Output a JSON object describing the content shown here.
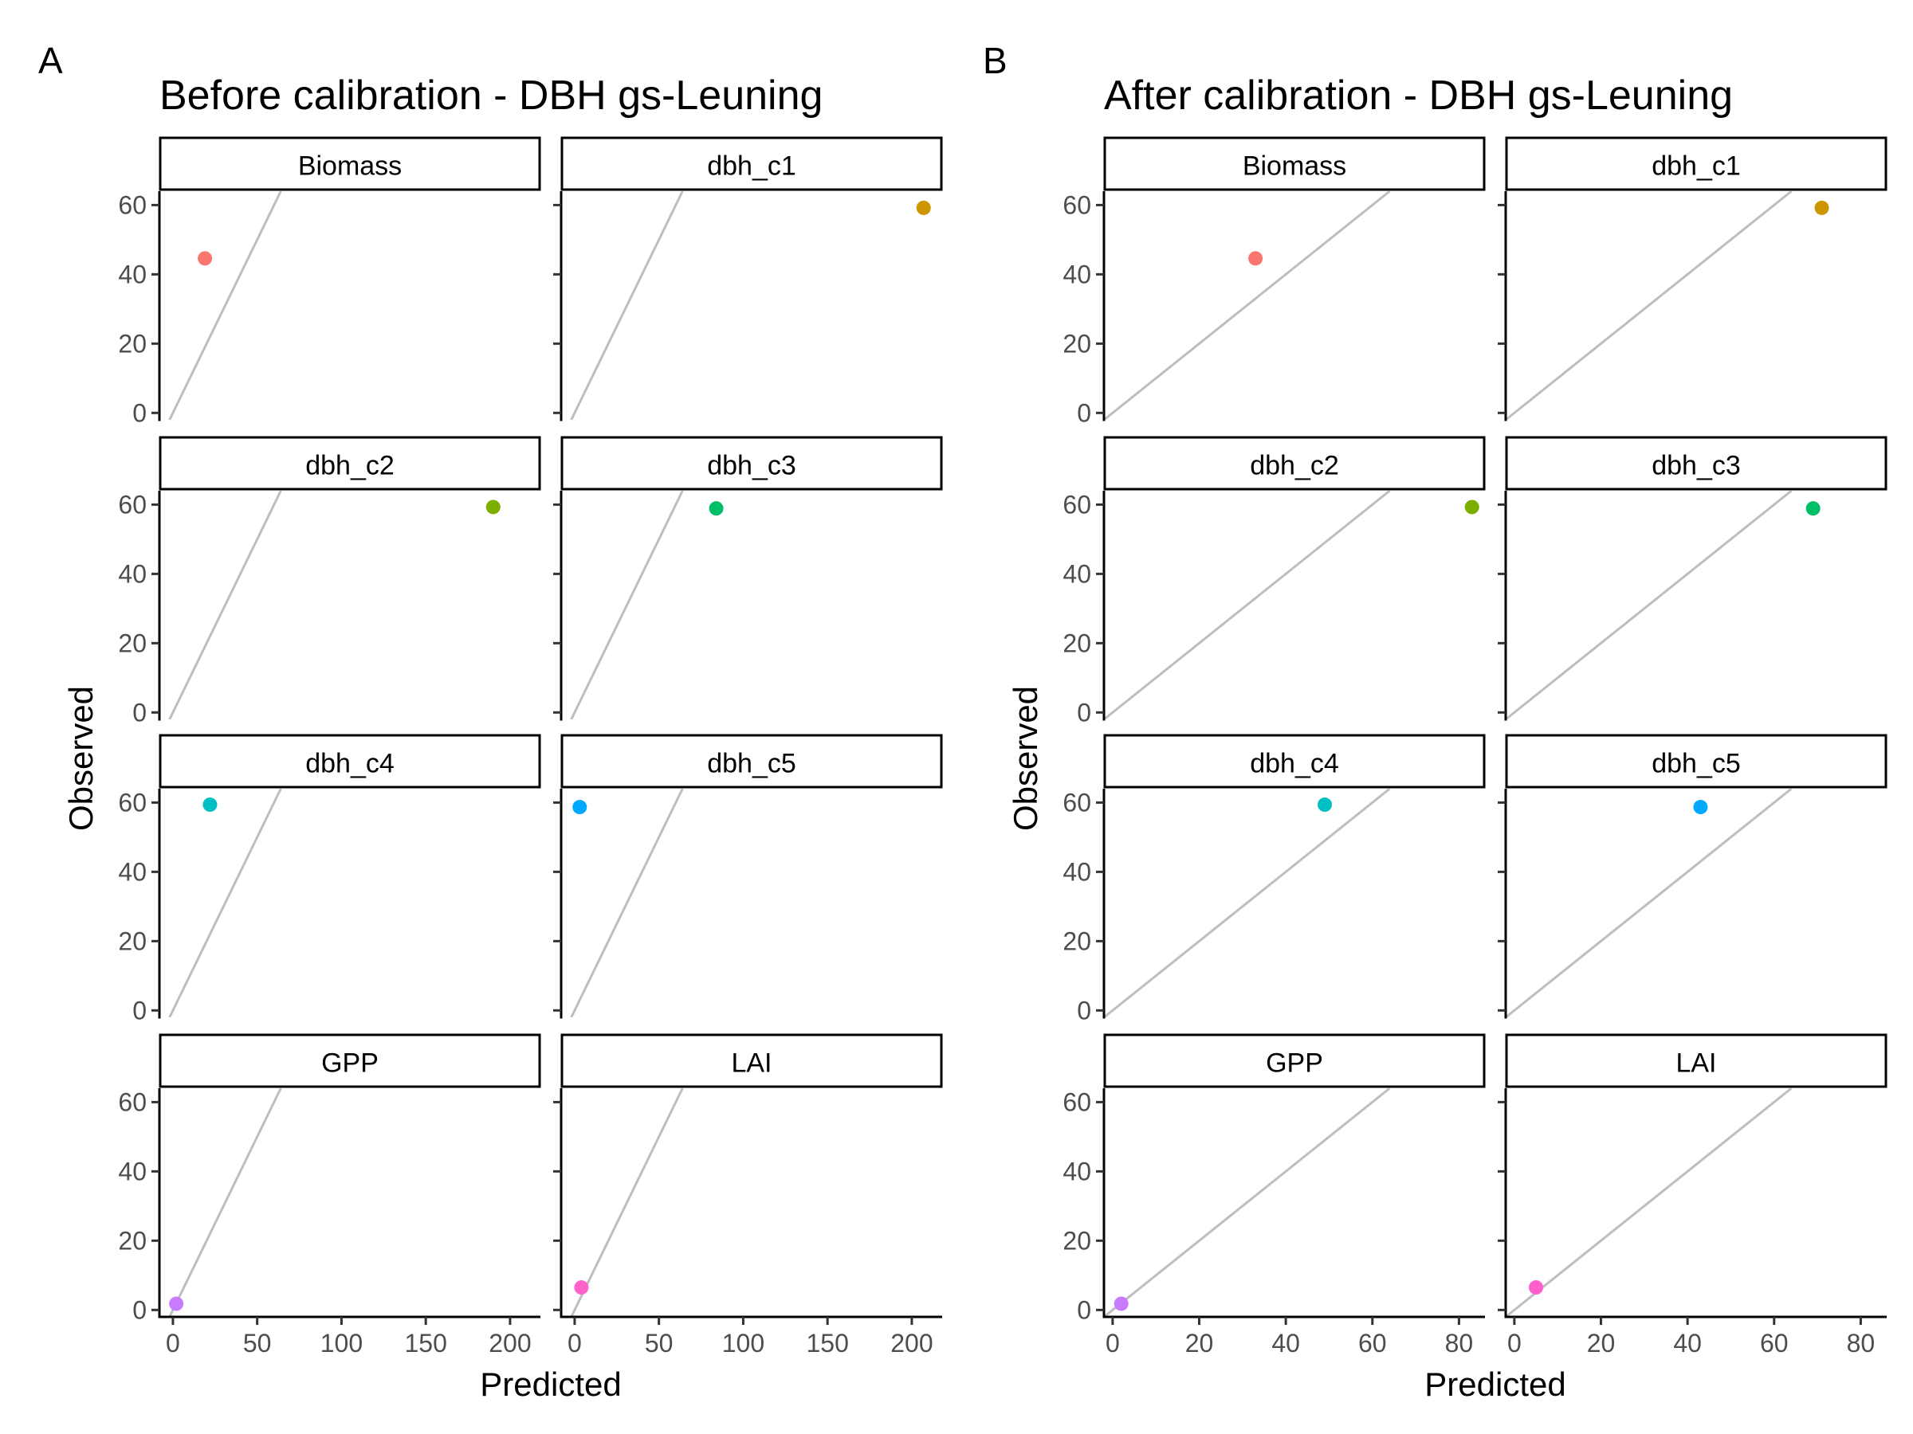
{
  "chart_data": [
    {
      "type": "scatter",
      "tag": "A",
      "title": "Before calibration - DBH gs-Leuning",
      "xlabel": "Predicted",
      "ylabel": "Observed",
      "xlim": [
        -8,
        218
      ],
      "ylim": [
        -2,
        64
      ],
      "xticks": [
        0,
        50,
        100,
        150,
        200
      ],
      "yticks": [
        0,
        20,
        40,
        60
      ],
      "reference_line": "identity y = x",
      "facets": [
        {
          "name": "Biomass",
          "color": "#F8766D",
          "x": 19,
          "y": 44.6
        },
        {
          "name": "dbh_c1",
          "color": "#CD9600",
          "x": 207,
          "y": 59.2
        },
        {
          "name": "dbh_c2",
          "color": "#7CAE00",
          "x": 190,
          "y": 59.3
        },
        {
          "name": "dbh_c3",
          "color": "#00BE67",
          "x": 84,
          "y": 58.9
        },
        {
          "name": "dbh_c4",
          "color": "#00BFC4",
          "x": 22,
          "y": 59.4
        },
        {
          "name": "dbh_c5",
          "color": "#00A9FF",
          "x": 3,
          "y": 58.7
        },
        {
          "name": "GPP",
          "color": "#C77CFF",
          "x": 2,
          "y": 1.8
        },
        {
          "name": "LAI",
          "color": "#FF61CC",
          "x": 4,
          "y": 6.5
        }
      ]
    },
    {
      "type": "scatter",
      "tag": "B",
      "title": "After calibration - DBH gs-Leuning",
      "xlabel": "Predicted",
      "ylabel": "Observed",
      "xlim": [
        -2,
        86
      ],
      "ylim": [
        -2,
        64
      ],
      "xticks": [
        0,
        20,
        40,
        60,
        80
      ],
      "yticks": [
        0,
        20,
        40,
        60
      ],
      "reference_line": "identity y = x",
      "facets": [
        {
          "name": "Biomass",
          "color": "#F8766D",
          "x": 33,
          "y": 44.6
        },
        {
          "name": "dbh_c1",
          "color": "#CD9600",
          "x": 71,
          "y": 59.2
        },
        {
          "name": "dbh_c2",
          "color": "#7CAE00",
          "x": 83,
          "y": 59.3
        },
        {
          "name": "dbh_c3",
          "color": "#00BE67",
          "x": 69,
          "y": 58.9
        },
        {
          "name": "dbh_c4",
          "color": "#00BFC4",
          "x": 49,
          "y": 59.4
        },
        {
          "name": "dbh_c5",
          "color": "#00A9FF",
          "x": 43,
          "y": 58.7
        },
        {
          "name": "GPP",
          "color": "#C77CFF",
          "x": 2,
          "y": 1.8
        },
        {
          "name": "LAI",
          "color": "#FF61CC",
          "x": 5,
          "y": 6.5
        }
      ]
    }
  ]
}
